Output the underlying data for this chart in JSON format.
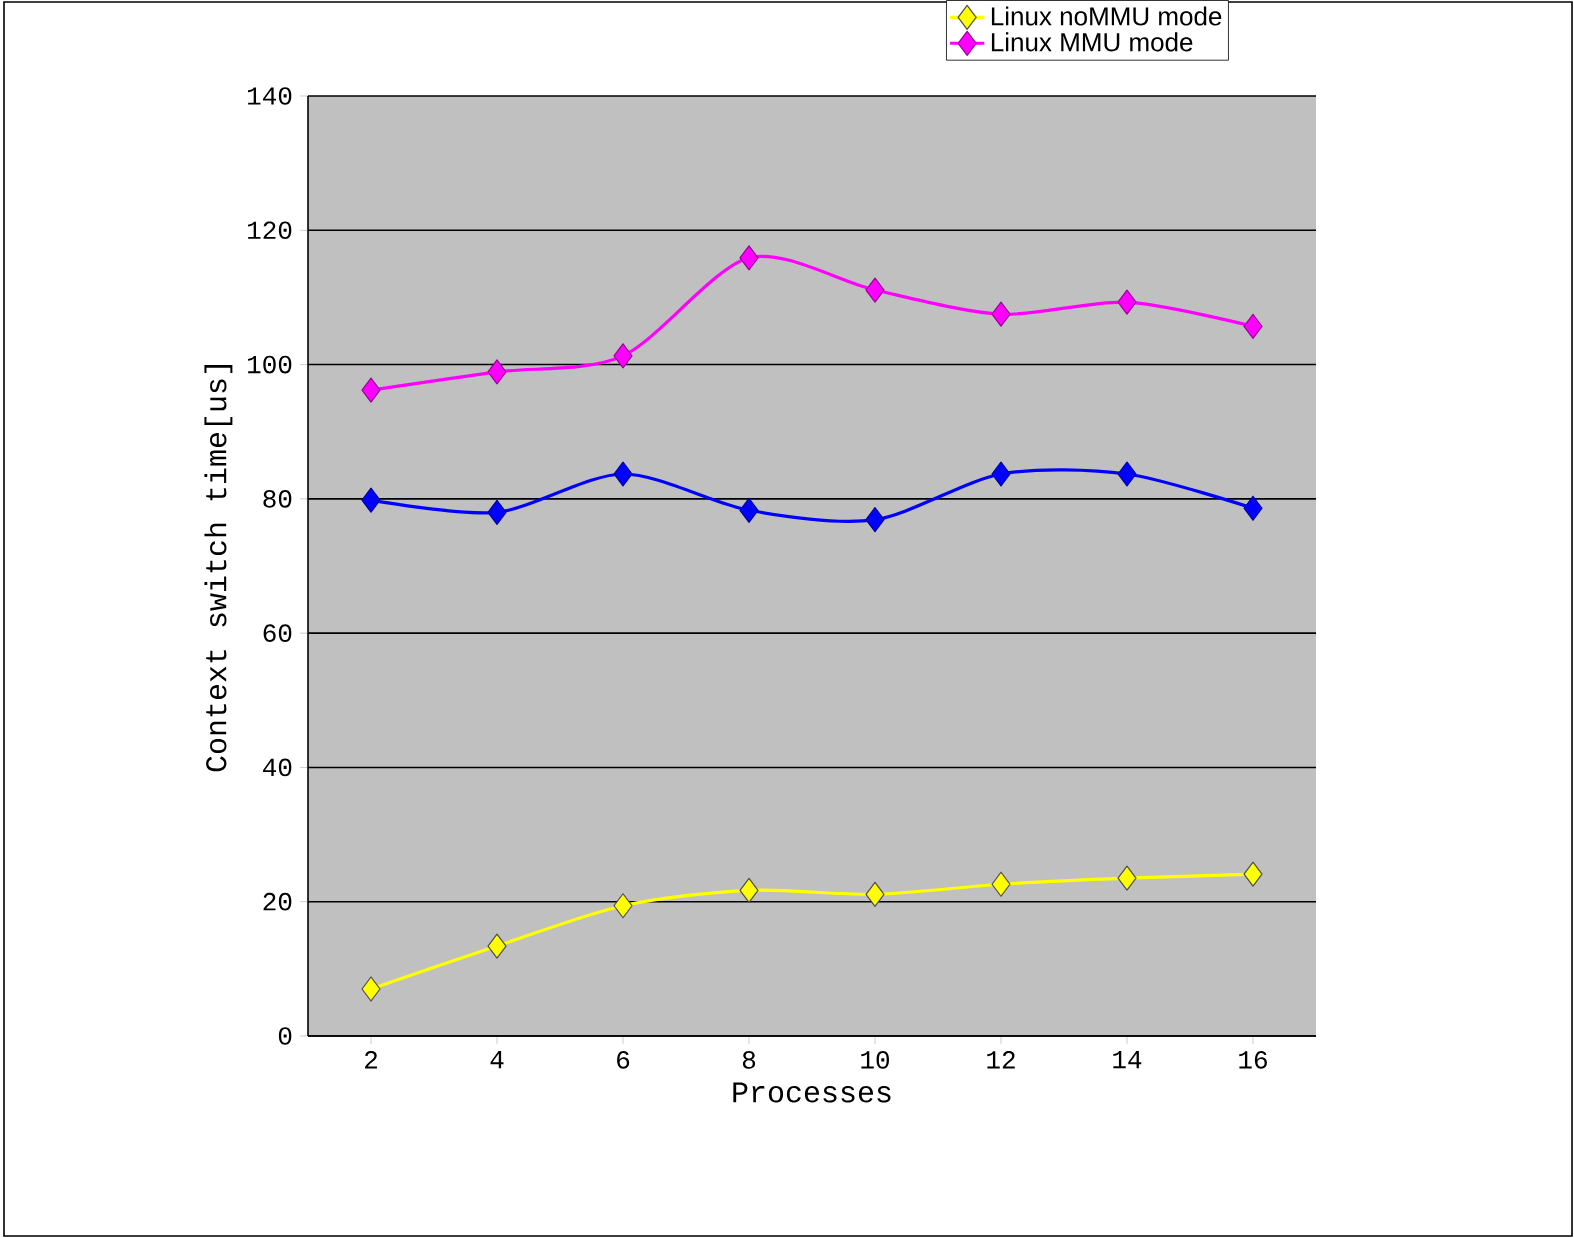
{
  "chart_data": {
    "type": "line",
    "xlabel": "Processes",
    "ylabel": "Context switch time[us]",
    "categories": [
      "2",
      "4",
      "6",
      "8",
      "10",
      "12",
      "14",
      "16"
    ],
    "series": [
      {
        "name": "Linux noMMU mode",
        "color": "#ffff00",
        "values": [
          7,
          13.4,
          19.4,
          21.7,
          21.1,
          22.6,
          23.5,
          24.1
        ]
      },
      {
        "name": "Linux MMU mode",
        "color": "#ff00ff",
        "values": [
          96.2,
          98.9,
          101.3,
          115.9,
          111.1,
          107.5,
          109.3,
          105.7
        ]
      },
      {
        "color": "#0000ff",
        "values": [
          79.8,
          78,
          83.7,
          78.3,
          76.9,
          83.7,
          83.7,
          78.6
        ]
      }
    ],
    "ylim": [
      0,
      140
    ],
    "yticks": [
      0,
      20,
      40,
      60,
      80,
      100,
      120,
      140
    ],
    "grid": "y",
    "legend": "top right",
    "marker": "diamond",
    "line_style": "solid"
  }
}
